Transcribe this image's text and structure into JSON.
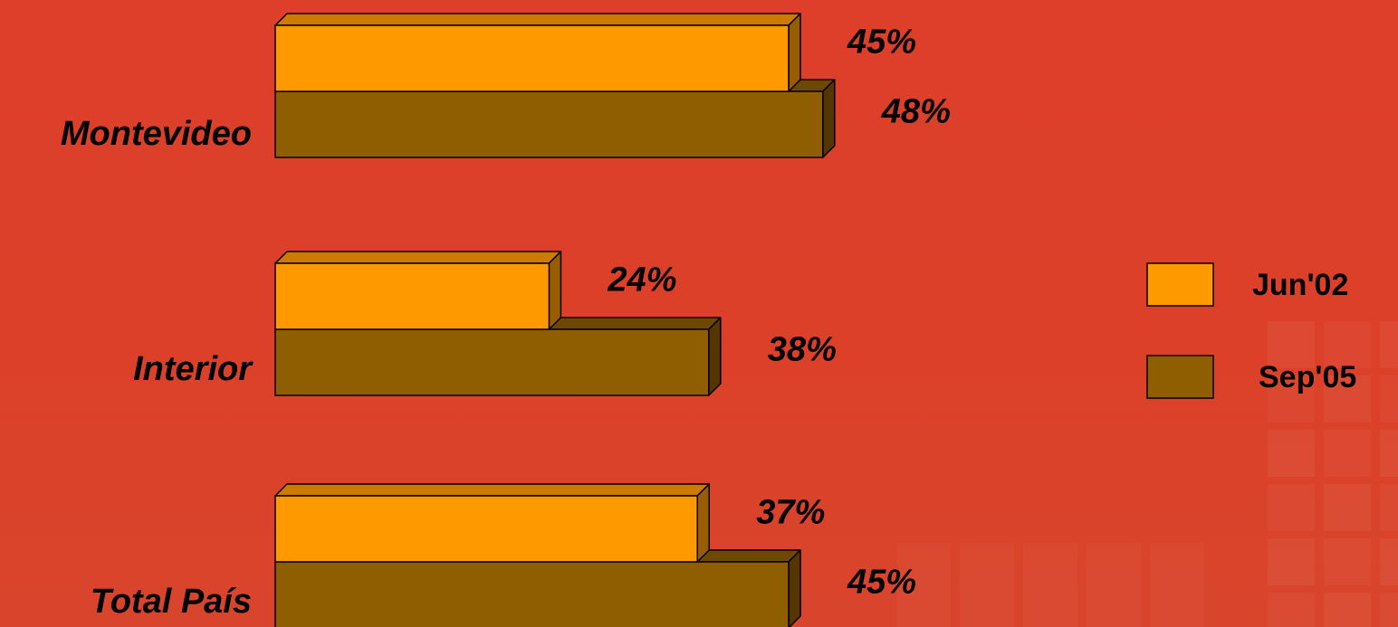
{
  "colors": {
    "background": "#dc3f2c",
    "series_1_front": "#ff9900",
    "series_1_top": "#cc7a00",
    "series_1_side": "#9a5c00",
    "series_2_front": "#8f5e00",
    "series_2_top": "#6e4700",
    "series_2_side": "#553600",
    "outline": "#000000"
  },
  "chart_data": {
    "type": "bar",
    "orientation": "horizontal",
    "three_d": true,
    "title": "",
    "xlabel": "",
    "ylabel": "",
    "xlim": [
      0,
      100
    ],
    "grid": false,
    "legend_position": "right",
    "categories": [
      "Montevideo",
      "Interior",
      "Total País"
    ],
    "series": [
      {
        "name": "Jun'02",
        "values": [
          45,
          24,
          37
        ],
        "labels": [
          "45%",
          "24%",
          "37%"
        ]
      },
      {
        "name": "Sep'05",
        "values": [
          48,
          38,
          45
        ],
        "labels": [
          "48%",
          "38%",
          "45%"
        ]
      }
    ]
  }
}
